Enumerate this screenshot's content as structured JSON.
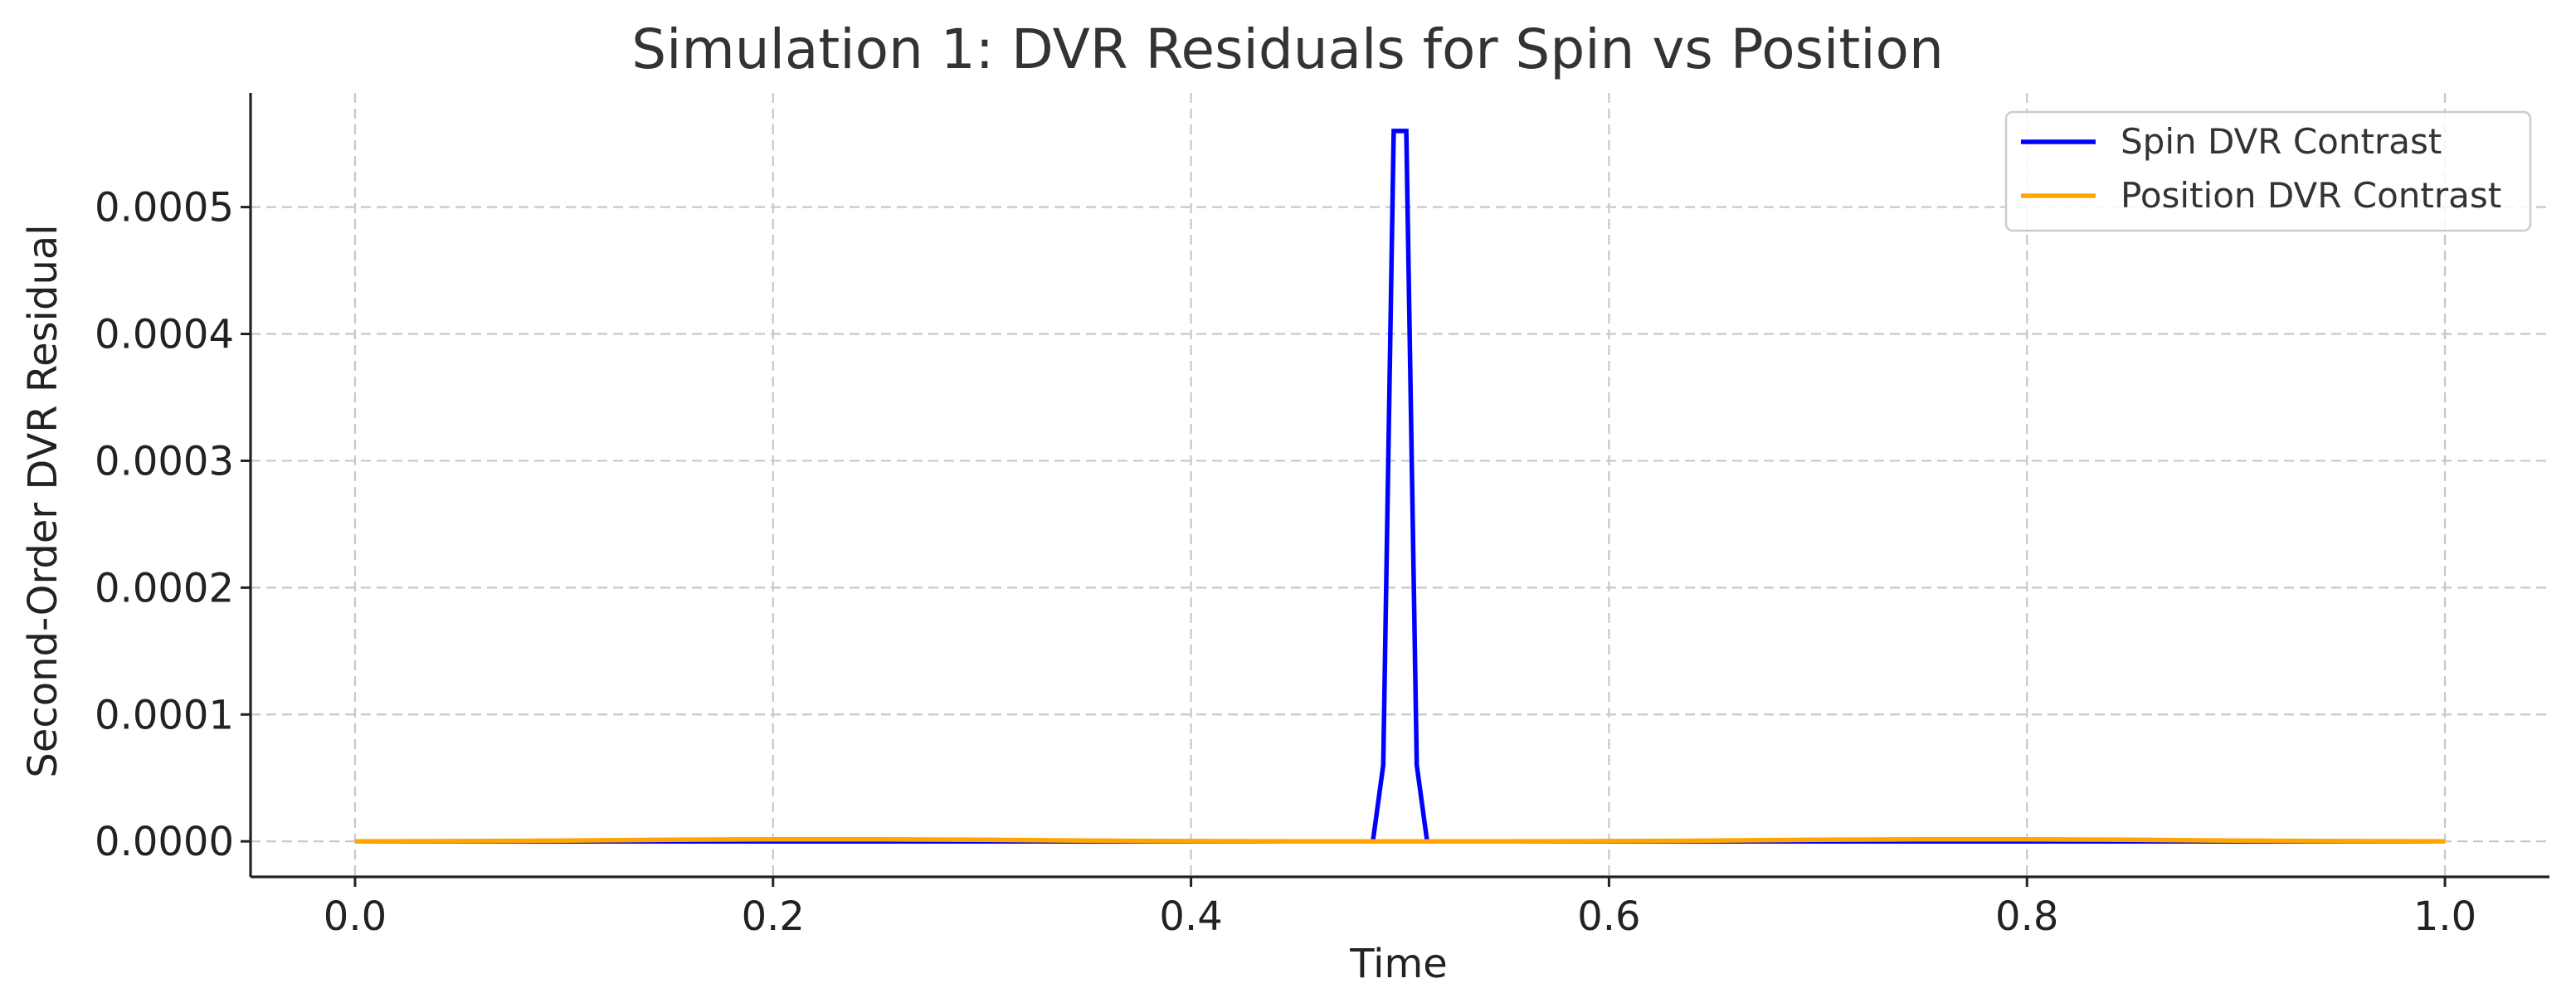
{
  "chart_data": {
    "type": "line",
    "title": "Simulation 1: DVR Residuals for Spin vs Position",
    "xlabel": "Time",
    "ylabel": "Second-Order DVR Residual",
    "xlim": [
      -0.05,
      1.05
    ],
    "ylim": [
      -2.8e-05,
      0.00059
    ],
    "xticks": [
      0.0,
      0.2,
      0.4,
      0.6,
      0.8,
      1.0
    ],
    "xtick_labels": [
      "0.0",
      "0.2",
      "0.4",
      "0.6",
      "0.8",
      "1.0"
    ],
    "yticks": [
      0.0,
      0.0001,
      0.0002,
      0.0003,
      0.0004,
      0.0005
    ],
    "ytick_labels": [
      "0.0000",
      "0.0001",
      "0.0002",
      "0.0003",
      "0.0004",
      "0.0005"
    ],
    "grid": true,
    "legend_position": "top-right",
    "series": [
      {
        "name": "Spin DVR Contrast",
        "color": "#0000ff",
        "x": [
          0.0,
          0.1,
          0.2,
          0.3,
          0.4,
          0.487,
          0.492,
          0.497,
          0.5,
          0.503,
          0.508,
          0.513,
          0.6,
          0.7,
          0.8,
          0.9,
          1.0
        ],
        "y": [
          0.0,
          0.0,
          0.0,
          0.0,
          0.0,
          0.0,
          6e-05,
          0.00056,
          0.00056,
          0.00056,
          6e-05,
          0.0,
          0.0,
          0.0,
          0.0,
          0.0,
          0.0
        ]
      },
      {
        "name": "Position DVR Contrast",
        "color": "#ffa500",
        "x": [
          0.0,
          0.05,
          0.1,
          0.15,
          0.2,
          0.25,
          0.3,
          0.35,
          0.4,
          0.45,
          0.5,
          0.55,
          0.6,
          0.65,
          0.7,
          0.75,
          0.8,
          0.85,
          0.9,
          0.95,
          1.0
        ],
        "y": [
          0.0,
          2e-07,
          6e-07,
          1.2e-06,
          1.6e-06,
          1.6e-06,
          1.2e-06,
          6e-07,
          2e-07,
          0.0,
          0.0,
          0.0,
          2e-07,
          6e-07,
          1.2e-06,
          1.6e-06,
          1.6e-06,
          1.2e-06,
          6e-07,
          2e-07,
          0.0
        ]
      }
    ]
  }
}
